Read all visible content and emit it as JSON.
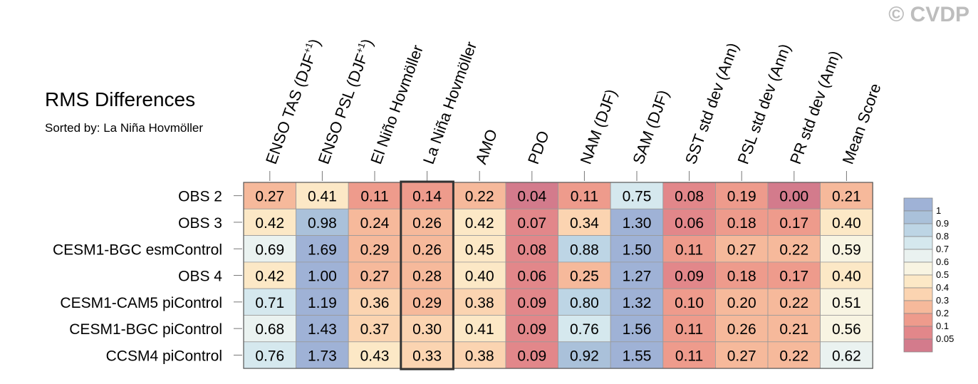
{
  "header": {
    "title": "RMS Differences",
    "subtitle": "Sorted by: La Niña Hovmöller",
    "watermark": "© CVDP"
  },
  "chart_data": {
    "type": "heatmap",
    "title": "RMS Differences",
    "subtitle": "Sorted by: La Niña Hovmöller",
    "columns": [
      {
        "label": "ENSO TAS (DJF",
        "sup": "+1",
        "close": ")"
      },
      {
        "label": "ENSO PSL (DJF",
        "sup": "+1",
        "close": ")"
      },
      {
        "label": "El Niño Hovmöller",
        "sup": "",
        "close": ""
      },
      {
        "label": "La Niña Hovmöller",
        "sup": "",
        "close": ""
      },
      {
        "label": "AMO",
        "sup": "",
        "close": ""
      },
      {
        "label": "PDO",
        "sup": "",
        "close": ""
      },
      {
        "label": "NAM (DJF)",
        "sup": "",
        "close": ""
      },
      {
        "label": "SAM (DJF)",
        "sup": "",
        "close": ""
      },
      {
        "label": "SST std dev (Ann)",
        "sup": "",
        "close": ""
      },
      {
        "label": "PSL std dev (Ann)",
        "sup": "",
        "close": ""
      },
      {
        "label": "PR std dev (Ann)",
        "sup": "",
        "close": ""
      },
      {
        "label": "Mean Score",
        "sup": "",
        "close": ""
      }
    ],
    "rows": [
      "OBS 2",
      "OBS 3",
      "CESM1-BGC esmControl",
      "OBS 4",
      "CESM1-CAM5 piControl",
      "CESM1-BGC piControl",
      "CCSM4 piControl"
    ],
    "values": [
      [
        "0.27",
        "0.41",
        "0.11",
        "0.14",
        "0.22",
        "0.04",
        "0.11",
        "0.75",
        "0.08",
        "0.19",
        "0.00",
        "0.21"
      ],
      [
        "0.42",
        "0.98",
        "0.24",
        "0.26",
        "0.42",
        "0.07",
        "0.34",
        "1.30",
        "0.06",
        "0.18",
        "0.17",
        "0.40"
      ],
      [
        "0.69",
        "1.69",
        "0.29",
        "0.26",
        "0.45",
        "0.08",
        "0.88",
        "1.50",
        "0.11",
        "0.27",
        "0.22",
        "0.59"
      ],
      [
        "0.42",
        "1.00",
        "0.27",
        "0.28",
        "0.40",
        "0.06",
        "0.25",
        "1.27",
        "0.09",
        "0.18",
        "0.17",
        "0.40"
      ],
      [
        "0.71",
        "1.19",
        "0.36",
        "0.29",
        "0.38",
        "0.09",
        "0.80",
        "1.32",
        "0.10",
        "0.20",
        "0.22",
        "0.51"
      ],
      [
        "0.68",
        "1.43",
        "0.37",
        "0.30",
        "0.41",
        "0.09",
        "0.76",
        "1.56",
        "0.11",
        "0.26",
        "0.21",
        "0.56"
      ],
      [
        "0.76",
        "1.73",
        "0.43",
        "0.33",
        "0.38",
        "0.09",
        "0.92",
        "1.55",
        "0.11",
        "0.27",
        "0.22",
        "0.62"
      ]
    ],
    "highlighted_column": "La Niña Hovmöller",
    "colorbar": {
      "levels": [
        "1",
        "0.9",
        "0.8",
        "0.7",
        "0.6",
        "0.5",
        "0.4",
        "0.3",
        "0.2",
        "0.1",
        "0.05"
      ],
      "colors": [
        "#9fb2d6",
        "#aac1da",
        "#bdd5e5",
        "#d5e8ee",
        "#eaf2f0",
        "#f8f4e2",
        "#fce8c6",
        "#fbd4b1",
        "#f6b99b",
        "#ee9b8c",
        "#e2878a",
        "#d37b8c"
      ]
    }
  }
}
